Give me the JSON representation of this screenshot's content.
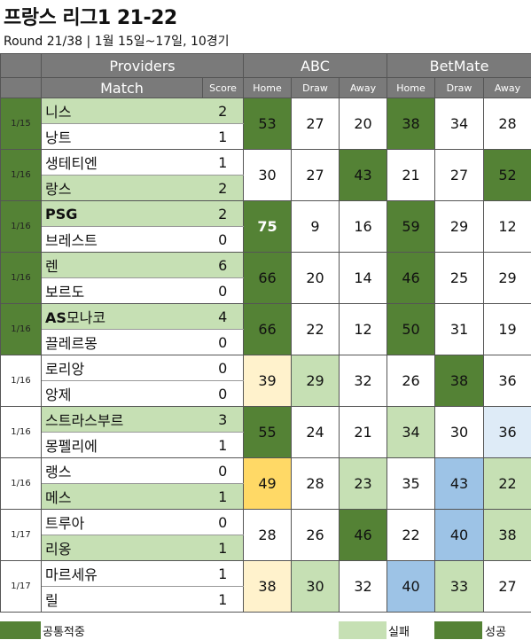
{
  "title": "프랑스 리그1 21-22",
  "subtitle": "Round 21/38  | 1월 15일~17일, 10경기",
  "headers": {
    "providers": "Providers",
    "abc": "ABC",
    "betmate": "BetMate",
    "match": "Match",
    "score": "Score",
    "home": "Home",
    "draw": "Draw",
    "away": "Away"
  },
  "matches": [
    {
      "date": "1/15",
      "home": "니스",
      "away": "낭트",
      "home_score": "2",
      "away_score": "1",
      "abc": [
        "53",
        "27",
        "20"
      ],
      "bet": [
        "38",
        "34",
        "28"
      ]
    },
    {
      "date": "1/16",
      "home": "생테티엔",
      "away": "랑스",
      "home_score": "1",
      "away_score": "2",
      "abc": [
        "30",
        "27",
        "43"
      ],
      "bet": [
        "21",
        "27",
        "52"
      ]
    },
    {
      "date": "1/16",
      "home": "PSG",
      "away": "브레스트",
      "home_score": "2",
      "away_score": "0",
      "abc": [
        "75",
        "9",
        "16"
      ],
      "bet": [
        "59",
        "29",
        "12"
      ]
    },
    {
      "date": "1/16",
      "home": "렌",
      "away": "보르도",
      "home_score": "6",
      "away_score": "0",
      "abc": [
        "66",
        "20",
        "14"
      ],
      "bet": [
        "46",
        "25",
        "29"
      ]
    },
    {
      "date": "1/16",
      "home": "AS모나코",
      "away": "끌레르몽",
      "home_score": "4",
      "away_score": "0",
      "abc": [
        "66",
        "22",
        "12"
      ],
      "bet": [
        "50",
        "31",
        "19"
      ]
    },
    {
      "date": "1/16",
      "home": "로리앙",
      "away": "앙제",
      "home_score": "0",
      "away_score": "0",
      "abc": [
        "39",
        "29",
        "32"
      ],
      "bet": [
        "26",
        "38",
        "36"
      ]
    },
    {
      "date": "1/16",
      "home": "스트라스부르",
      "away": "몽펠리에",
      "home_score": "3",
      "away_score": "1",
      "abc": [
        "55",
        "24",
        "21"
      ],
      "bet": [
        "34",
        "30",
        "36"
      ]
    },
    {
      "date": "1/16",
      "home": "랭스",
      "away": "메스",
      "home_score": "0",
      "away_score": "1",
      "abc": [
        "49",
        "28",
        "23"
      ],
      "bet": [
        "35",
        "43",
        "22"
      ]
    },
    {
      "date": "1/17",
      "home": "트루아",
      "away": "리옹",
      "home_score": "0",
      "away_score": "1",
      "abc": [
        "28",
        "26",
        "46"
      ],
      "bet": [
        "22",
        "40",
        "38"
      ]
    },
    {
      "date": "1/17",
      "home": "마르세유",
      "away": "릴",
      "home_score": "1",
      "away_score": "1",
      "abc": [
        "38",
        "30",
        "32"
      ],
      "bet": [
        "40",
        "33",
        "27"
      ]
    }
  ],
  "legend": {
    "common_hit": "공통적중",
    "fail": "실패",
    "success": "성공"
  },
  "colors": {
    "header_gray": "#7a7a7a",
    "success_dark_green": "#548235",
    "fail_light_green": "#c6e0b4",
    "pale_yellow": "#fff2cc",
    "yellow": "#ffd966",
    "blue": "#9dc3e6",
    "pale_blue": "#deebf7"
  }
}
